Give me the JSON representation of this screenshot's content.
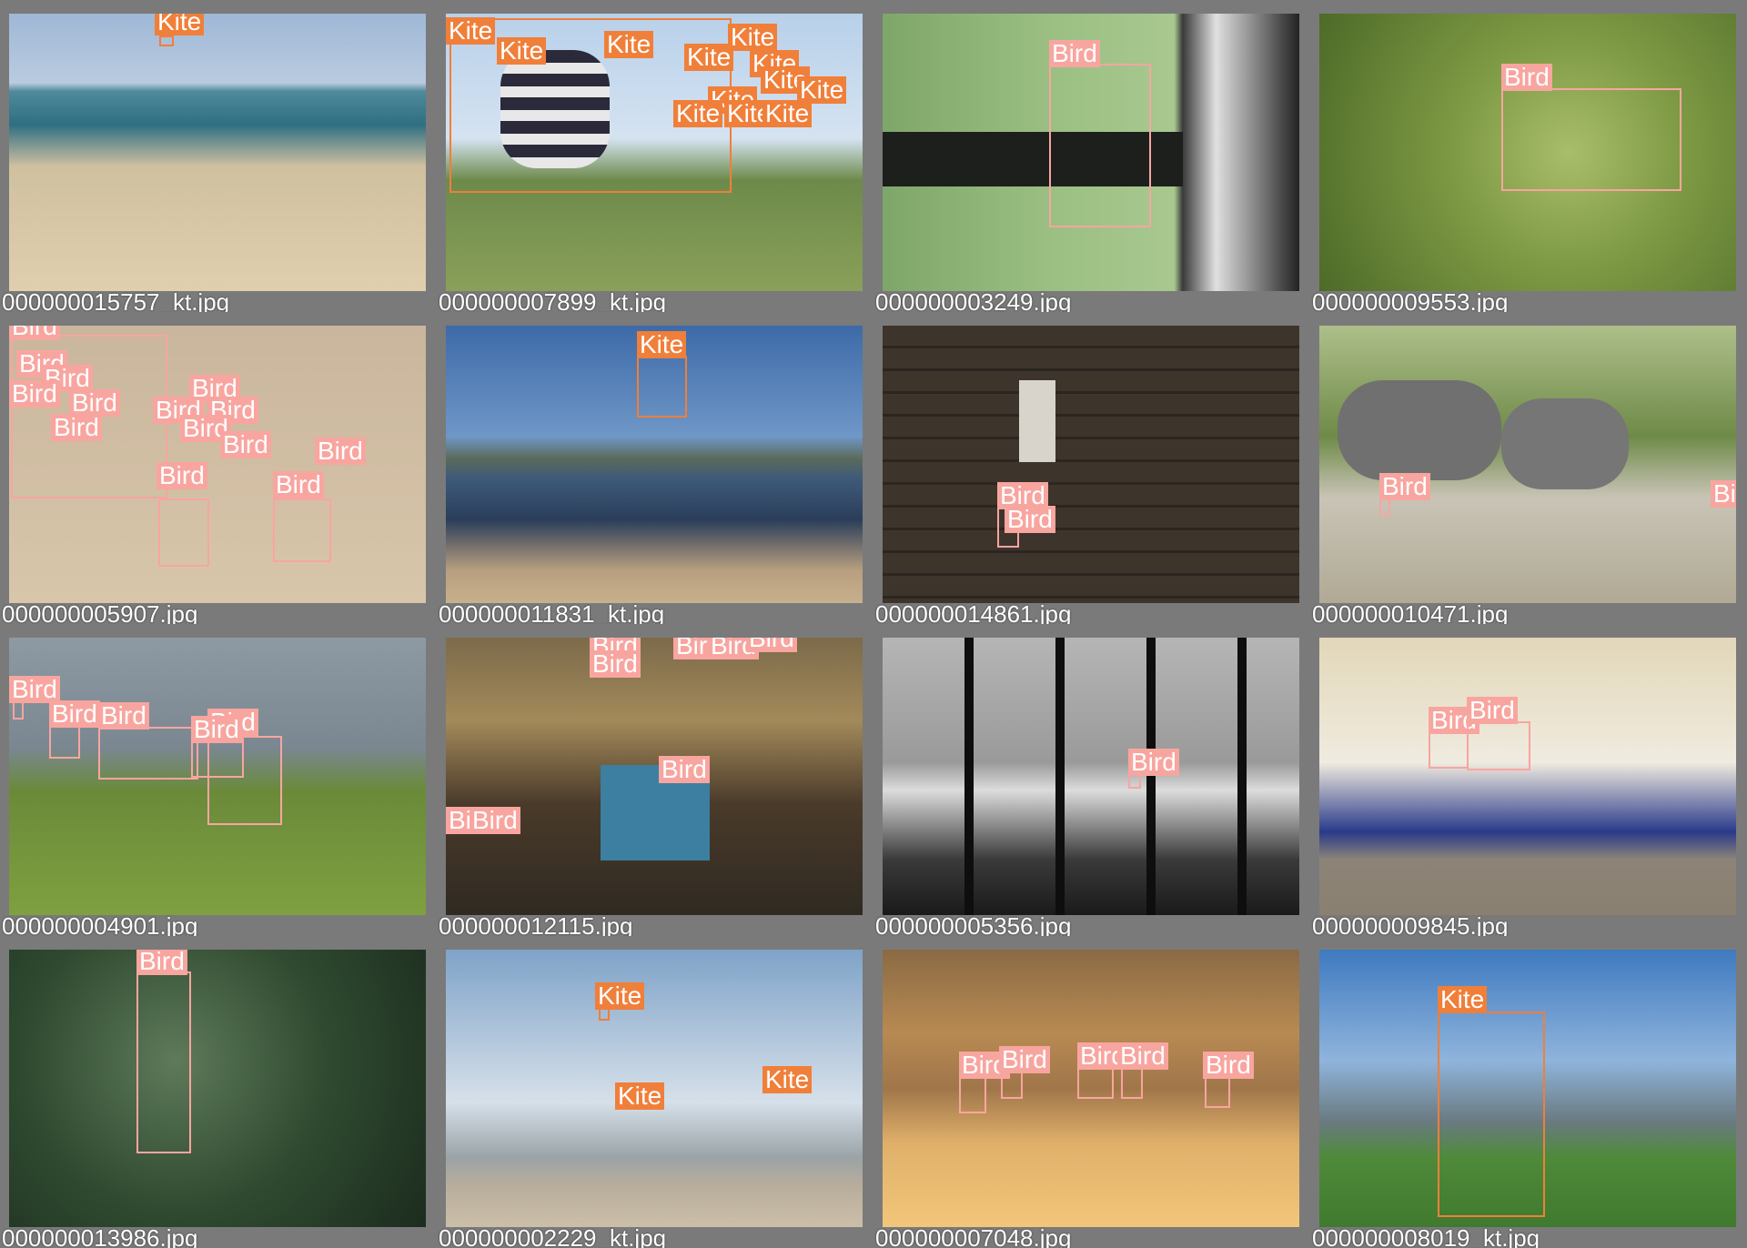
{
  "colors": {
    "kite": "#f07f3a",
    "bird": "#f8a5a0",
    "frame": "#7a7a7a"
  },
  "tiles": [
    {
      "filename": "000000015757_kt.jpg",
      "labels": [
        "Kite"
      ]
    },
    {
      "filename": "000000007899_kt.jpg",
      "labels": [
        "Kite",
        "Kite",
        "Kite",
        "Kite",
        "Kite",
        "Kite",
        "Kite",
        "Kite",
        "Kite",
        "Kite",
        "Kite",
        "Kite"
      ]
    },
    {
      "filename": "000000003249.jpg",
      "labels": [
        "Bird"
      ]
    },
    {
      "filename": "000000009553.jpg",
      "labels": [
        "Bird"
      ]
    },
    {
      "filename": "000000005907.jpg",
      "labels": [
        "Bird",
        "Bird",
        "Bird",
        "Bird",
        "Bird",
        "Bird",
        "Bird",
        "Bird",
        "Bird",
        "Bird",
        "Bird",
        "Bird",
        "Bird",
        "Bird"
      ]
    },
    {
      "filename": "000000011831_kt.jpg",
      "labels": [
        "Kite"
      ]
    },
    {
      "filename": "000000014861.jpg",
      "labels": [
        "Bird",
        "Bird"
      ]
    },
    {
      "filename": "000000010471.jpg",
      "labels": [
        "Bird",
        "Bird"
      ]
    },
    {
      "filename": "000000004901.jpg",
      "labels": [
        "Bird",
        "Bird",
        "Bird",
        "Bird",
        "Bird"
      ]
    },
    {
      "filename": "000000012115.jpg",
      "labels": [
        "Bird",
        "Bird",
        "Bird",
        "Bird",
        "Bird",
        "Bird",
        "Bird",
        "Bird"
      ]
    },
    {
      "filename": "000000005356.jpg",
      "labels": [
        "Bird"
      ]
    },
    {
      "filename": "000000009845.jpg",
      "labels": [
        "Bird",
        "Bird"
      ]
    },
    {
      "filename": "000000013986.jpg",
      "labels": [
        "Bird"
      ]
    },
    {
      "filename": "000000002229_kt.jpg",
      "labels": [
        "Kite",
        "Kite",
        "Kite"
      ]
    },
    {
      "filename": "000000007048.jpg",
      "labels": [
        "Bird",
        "Bird",
        "Bird",
        "Bird",
        "Bird"
      ]
    },
    {
      "filename": "000000008019_kt.jpg",
      "labels": [
        "Kite"
      ]
    }
  ]
}
